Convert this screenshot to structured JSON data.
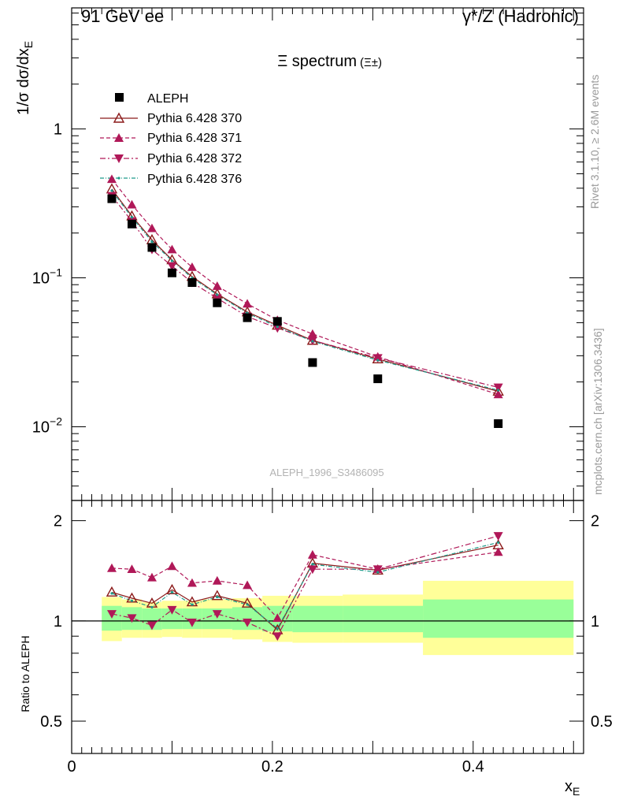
{
  "header": {
    "left": "91 GeV ee",
    "right": "γ*/Z (Hadronic)"
  },
  "side": {
    "rivet": "Rivet 3.1.10, ≥ 2.6M events",
    "mcplots": "mcplots.cern.ch [arXiv:1306.3436]"
  },
  "chart_data": {
    "type": "scatter",
    "title": "Ξ spectrum",
    "title_suffix": "(Ξ±)",
    "ylabel": "1/σ dσ/dx_E",
    "ylabel_main": "1/σ dσ/dx",
    "ylabel_sub": "E",
    "ratio_ylabel": "Ratio to ALEPH",
    "xlabel_main": "x",
    "xlabel_sub": "E",
    "analysis_id": "ALEPH_1996_S3486095",
    "xlim": [
      0,
      0.51
    ],
    "ylim": [
      0.0032,
      6.5
    ],
    "ratio_ylim": [
      0.4,
      2.3
    ],
    "y_scale": "log",
    "x_ticks": [
      {
        "v": 0,
        "label": "0"
      },
      {
        "v": 0.2,
        "label": "0.2"
      },
      {
        "v": 0.4,
        "label": "0.4"
      }
    ],
    "y_ticks": [
      {
        "v": 1,
        "base": "1",
        "exp": ""
      },
      {
        "v": 0.1,
        "base": "10",
        "exp": "−1"
      },
      {
        "v": 0.01,
        "base": "10",
        "exp": "−2"
      }
    ],
    "ratio_ticks": [
      {
        "v": 2,
        "label": "2"
      },
      {
        "v": 1,
        "label": "1"
      },
      {
        "v": 0.5,
        "label": "0.5"
      }
    ],
    "x": [
      0.04,
      0.06,
      0.08,
      0.1,
      0.12,
      0.145,
      0.175,
      0.205,
      0.24,
      0.305,
      0.425
    ],
    "data": {
      "name": "ALEPH",
      "values": [
        0.34,
        0.23,
        0.16,
        0.108,
        0.093,
        0.068,
        0.054,
        0.051,
        0.027,
        0.021,
        0.0105
      ]
    },
    "bands": [
      {
        "lo": 0.03,
        "hi": 0.05,
        "y1": [
          0.935,
          1.11
        ],
        "y2": [
          0.87,
          1.18
        ]
      },
      {
        "lo": 0.05,
        "hi": 0.07,
        "y1": [
          0.94,
          1.1
        ],
        "y2": [
          0.89,
          1.16
        ]
      },
      {
        "lo": 0.07,
        "hi": 0.09,
        "y1": [
          0.94,
          1.09
        ],
        "y2": [
          0.89,
          1.14
        ]
      },
      {
        "lo": 0.09,
        "hi": 0.11,
        "y1": [
          0.945,
          1.09
        ],
        "y2": [
          0.895,
          1.15
        ]
      },
      {
        "lo": 0.11,
        "hi": 0.13,
        "y1": [
          0.945,
          1.09
        ],
        "y2": [
          0.89,
          1.15
        ]
      },
      {
        "lo": 0.13,
        "hi": 0.16,
        "y1": [
          0.945,
          1.09
        ],
        "y2": [
          0.89,
          1.16
        ]
      },
      {
        "lo": 0.16,
        "hi": 0.19,
        "y1": [
          0.94,
          1.1
        ],
        "y2": [
          0.88,
          1.17
        ]
      },
      {
        "lo": 0.19,
        "hi": 0.22,
        "y1": [
          0.93,
          1.11
        ],
        "y2": [
          0.865,
          1.19
        ]
      },
      {
        "lo": 0.22,
        "hi": 0.27,
        "y1": [
          0.925,
          1.11
        ],
        "y2": [
          0.86,
          1.19
        ]
      },
      {
        "lo": 0.27,
        "hi": 0.35,
        "y1": [
          0.925,
          1.11
        ],
        "y2": [
          0.86,
          1.2
        ]
      },
      {
        "lo": 0.35,
        "hi": 0.5,
        "y1": [
          0.89,
          1.16
        ],
        "y2": [
          0.79,
          1.32
        ]
      }
    ],
    "series": [
      {
        "name": "Pythia 6.428 370",
        "color": "#8b1a1a",
        "dash": "",
        "marker": "triangle-up-open",
        "values": [
          0.395,
          0.26,
          0.18,
          0.132,
          0.102,
          0.078,
          0.059,
          0.048,
          0.038,
          0.0285,
          0.0173
        ]
      },
      {
        "name": "Pythia 6.428 371",
        "color": "#b01858",
        "dash": "5,3",
        "marker": "triangle-up",
        "values": [
          0.46,
          0.31,
          0.215,
          0.155,
          0.118,
          0.088,
          0.067,
          0.052,
          0.042,
          0.0295,
          0.0165
        ]
      },
      {
        "name": "Pythia 6.428 372",
        "color": "#b01858",
        "dash": "7,3,2,3",
        "marker": "triangle-down",
        "values": [
          0.355,
          0.24,
          0.155,
          0.12,
          0.093,
          0.073,
          0.055,
          0.046,
          0.038,
          0.029,
          0.0184
        ]
      },
      {
        "name": "Pythia 6.428 376",
        "color": "#1e9b8a",
        "dash": "5,2,1,2",
        "marker": "dot",
        "values": [
          0.385,
          0.255,
          0.175,
          0.13,
          0.1,
          0.077,
          0.058,
          0.047,
          0.0375,
          0.028,
          0.0176
        ]
      }
    ],
    "ratios": [
      [
        1.22,
        1.17,
        1.13,
        1.24,
        1.14,
        1.19,
        1.13,
        0.94,
        1.49,
        1.42,
        1.69
      ],
      [
        1.44,
        1.43,
        1.35,
        1.46,
        1.3,
        1.32,
        1.28,
        1.02,
        1.58,
        1.43,
        1.61
      ],
      [
        1.05,
        1.02,
        0.97,
        1.08,
        0.99,
        1.05,
        0.99,
        0.9,
        1.43,
        1.43,
        1.8
      ],
      [
        1.21,
        1.15,
        1.1,
        1.22,
        1.12,
        1.18,
        1.12,
        0.95,
        1.48,
        1.4,
        1.72
      ]
    ]
  }
}
